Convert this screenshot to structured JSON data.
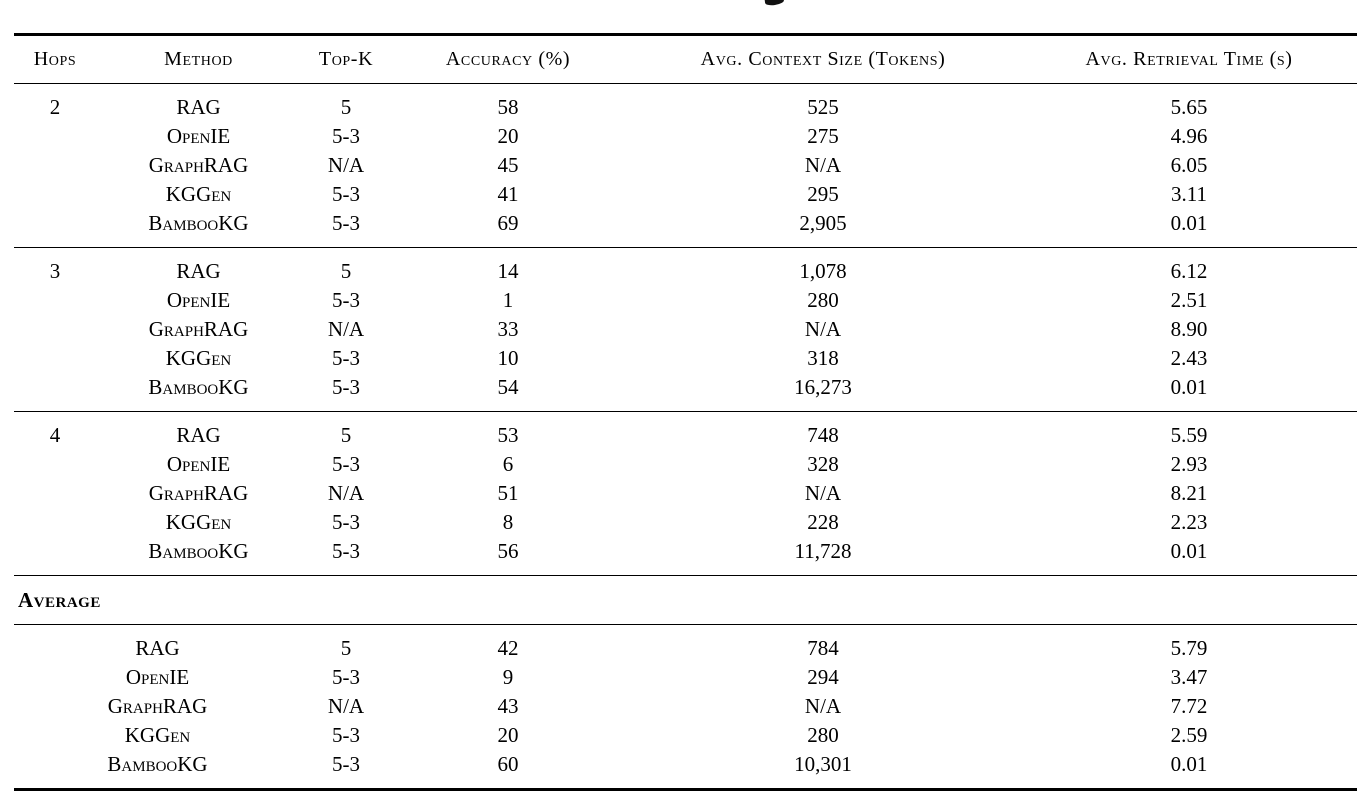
{
  "table": {
    "headers": {
      "hops": "Hops",
      "method": "Method",
      "topk": "Top-K",
      "accuracy": "Accuracy (%)",
      "context": "Avg. Context Size (Tokens)",
      "time": "Avg. Retrieval Time (s)"
    },
    "sections": [
      {
        "hops": "2",
        "rows": [
          {
            "method": "RAG",
            "topk": "5",
            "accuracy": "58",
            "context": "525",
            "time": "5.65"
          },
          {
            "method": "OpenIE",
            "topk": "5-3",
            "accuracy": "20",
            "context": "275",
            "time": "4.96"
          },
          {
            "method": "GraphRAG",
            "topk": "N/A",
            "accuracy": "45",
            "context": "N/A",
            "time": "6.05"
          },
          {
            "method": "KGGen",
            "topk": "5-3",
            "accuracy": "41",
            "context": "295",
            "time": "3.11"
          },
          {
            "method": "BambooKG",
            "topk": "5-3",
            "accuracy": "69",
            "context": "2,905",
            "time": "0.01"
          }
        ]
      },
      {
        "hops": "3",
        "rows": [
          {
            "method": "RAG",
            "topk": "5",
            "accuracy": "14",
            "context": "1,078",
            "time": "6.12"
          },
          {
            "method": "OpenIE",
            "topk": "5-3",
            "accuracy": "1",
            "context": "280",
            "time": "2.51"
          },
          {
            "method": "GraphRAG",
            "topk": "N/A",
            "accuracy": "33",
            "context": "N/A",
            "time": "8.90"
          },
          {
            "method": "KGGen",
            "topk": "5-3",
            "accuracy": "10",
            "context": "318",
            "time": "2.43"
          },
          {
            "method": "BambooKG",
            "topk": "5-3",
            "accuracy": "54",
            "context": "16,273",
            "time": "0.01"
          }
        ]
      },
      {
        "hops": "4",
        "rows": [
          {
            "method": "RAG",
            "topk": "5",
            "accuracy": "53",
            "context": "748",
            "time": "5.59"
          },
          {
            "method": "OpenIE",
            "topk": "5-3",
            "accuracy": "6",
            "context": "328",
            "time": "2.93"
          },
          {
            "method": "GraphRAG",
            "topk": "N/A",
            "accuracy": "51",
            "context": "N/A",
            "time": "8.21"
          },
          {
            "method": "KGGen",
            "topk": "5-3",
            "accuracy": "8",
            "context": "228",
            "time": "2.23"
          },
          {
            "method": "BambooKG",
            "topk": "5-3",
            "accuracy": "56",
            "context": "11,728",
            "time": "0.01"
          }
        ]
      }
    ],
    "average_label": "Average",
    "average_rows": [
      {
        "method": "RAG",
        "topk": "5",
        "accuracy": "42",
        "context": "784",
        "time": "5.79"
      },
      {
        "method": "OpenIE",
        "topk": "5-3",
        "accuracy": "9",
        "context": "294",
        "time": "3.47"
      },
      {
        "method": "GraphRAG",
        "topk": "N/A",
        "accuracy": "43",
        "context": "N/A",
        "time": "7.72"
      },
      {
        "method": "KGGen",
        "topk": "5-3",
        "accuracy": "20",
        "context": "280",
        "time": "2.59"
      },
      {
        "method": "BambooKG",
        "topk": "5-3",
        "accuracy": "60",
        "context": "10,301",
        "time": "0.01"
      }
    ]
  }
}
